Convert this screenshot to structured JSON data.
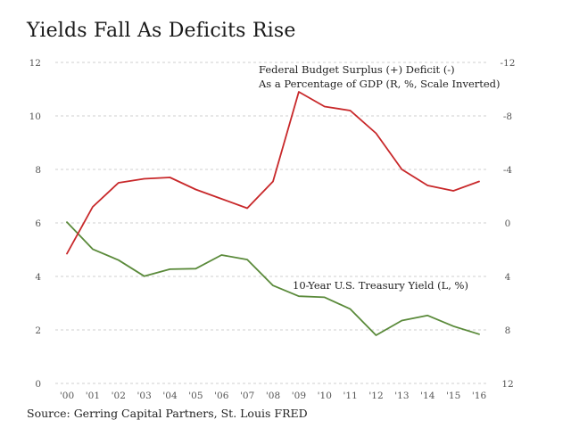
{
  "title": "Yields Fall As Deficits Rise",
  "source": "Source: Gerring Capital Partners, St. Louis FRED",
  "chart_data": {
    "type": "line",
    "title": "Yields Fall As Deficits Rise",
    "categories": [
      "'00",
      "'01",
      "'02",
      "'03",
      "'04",
      "'05",
      "'06",
      "'07",
      "'08",
      "'09",
      "'10",
      "'11",
      "'12",
      "'13",
      "'14",
      "'15",
      "'16"
    ],
    "left_axis": {
      "ylim": [
        0,
        12
      ],
      "ticks": [
        "0",
        "2",
        "4",
        "6",
        "8",
        "10",
        "12"
      ]
    },
    "right_axis": {
      "ylim": [
        12,
        -12
      ],
      "inverted": true,
      "ticks": [
        "12",
        "8",
        "4",
        "0",
        "-4",
        "-8",
        "-12"
      ]
    },
    "grid": true,
    "series": [
      {
        "name": "10-Year U.S. Treasury Yield (L, %)",
        "axis": "left",
        "color": "#5a8a3a",
        "values": [
          6.03,
          5.02,
          4.61,
          4.01,
          4.27,
          4.29,
          4.8,
          4.63,
          3.66,
          3.26,
          3.22,
          2.78,
          1.8,
          2.35,
          2.54,
          2.14,
          1.84
        ]
      },
      {
        "name": "Federal Budget Surplus (+) Deficit (-) As a Percentage of GDP (R, %, Scale Inverted)",
        "axis": "right",
        "color": "#c8282a",
        "values": [
          2.3,
          -1.2,
          -3.0,
          -3.3,
          -3.4,
          -2.5,
          -1.8,
          -1.1,
          -3.1,
          -9.8,
          -8.7,
          -8.4,
          -6.7,
          -4.0,
          -2.8,
          -2.4,
          -3.1
        ]
      }
    ],
    "annotations": {
      "budget_line1": "Federal Budget Surplus (+) Deficit (-)",
      "budget_line2": "As a Percentage of GDP (R, %, Scale Inverted)",
      "treasury": "10-Year U.S. Treasury Yield (L, %)"
    }
  }
}
